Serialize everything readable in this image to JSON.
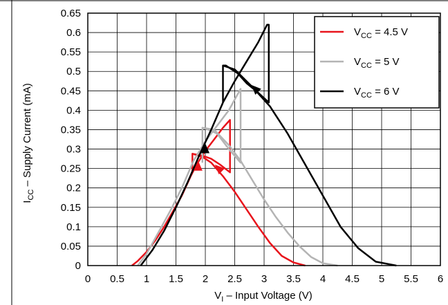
{
  "chart_data": {
    "type": "line",
    "title": "",
    "xlabel": {
      "main": "V",
      "sub": "I",
      "rest": " – Input Voltage (V)"
    },
    "ylabel": {
      "main": "I",
      "sub": "CC",
      "rest": " – Supply Current (mA)"
    },
    "xlim": [
      0,
      6
    ],
    "ylim": [
      0,
      0.65
    ],
    "xticks": [
      0,
      0.5,
      1,
      1.5,
      2,
      2.5,
      3,
      3.5,
      4,
      4.5,
      5,
      5.5,
      6
    ],
    "xtick_labels": [
      "0",
      "0.5",
      "1",
      "1.5",
      "2",
      "2.5",
      "3",
      "3.5",
      "4",
      "4.5",
      "5",
      "5.5",
      "6"
    ],
    "yticks": [
      0,
      0.05,
      0.1,
      0.15,
      0.2,
      0.25,
      0.3,
      0.35,
      0.4,
      0.45,
      0.5,
      0.55,
      0.6,
      0.65
    ],
    "ytick_labels": [
      "0",
      "0.05",
      "0.1",
      "0.15",
      "0.2",
      "0.25",
      "0.3",
      "0.35",
      "0.4",
      "0.45",
      "0.5",
      "0.55",
      "0.6",
      "0.65"
    ],
    "grid": true,
    "legend_position": "top-right",
    "series": [
      {
        "name": {
          "main": "V",
          "sub": "CC",
          "rest": " = 4.5 V"
        },
        "color": "#e8141c",
        "rising": [
          [
            0.75,
            0
          ],
          [
            0.85,
            0.012
          ],
          [
            1.0,
            0.035
          ],
          [
            1.15,
            0.065
          ],
          [
            1.3,
            0.1
          ],
          [
            1.45,
            0.14
          ],
          [
            1.6,
            0.18
          ],
          [
            1.75,
            0.23
          ],
          [
            1.85,
            0.26
          ],
          [
            2.0,
            0.295
          ],
          [
            2.15,
            0.325
          ],
          [
            2.3,
            0.355
          ],
          [
            2.42,
            0.375
          ],
          [
            2.42,
            0.24
          ],
          [
            2.25,
            0.26
          ],
          [
            2.1,
            0.275
          ],
          [
            1.95,
            0.283
          ],
          [
            1.78,
            0.288
          ],
          [
            1.78,
            0.24
          ]
        ],
        "falling": [
          [
            1.78,
            0.288
          ],
          [
            1.95,
            0.28
          ],
          [
            2.1,
            0.265
          ],
          [
            2.3,
            0.23
          ],
          [
            2.5,
            0.19
          ],
          [
            2.7,
            0.145
          ],
          [
            2.9,
            0.1
          ],
          [
            3.1,
            0.058
          ],
          [
            3.3,
            0.025
          ],
          [
            3.5,
            0.008
          ],
          [
            3.7,
            0
          ]
        ],
        "arrows": [
          [
            1.88,
            0.255,
            "up"
          ],
          [
            2.23,
            0.25,
            "left-up"
          ]
        ]
      },
      {
        "name": {
          "main": "V",
          "sub": "CC",
          "rest": " = 5 V"
        },
        "color": "#b4b4b4",
        "rising": [
          [
            0.85,
            0
          ],
          [
            1.0,
            0.03
          ],
          [
            1.2,
            0.085
          ],
          [
            1.4,
            0.14
          ],
          [
            1.6,
            0.2
          ],
          [
            1.8,
            0.27
          ],
          [
            2.0,
            0.32
          ],
          [
            2.2,
            0.36
          ],
          [
            2.4,
            0.4
          ],
          [
            2.6,
            0.455
          ],
          [
            2.6,
            0.265
          ],
          [
            2.4,
            0.3
          ],
          [
            2.2,
            0.34
          ],
          [
            2.05,
            0.35
          ],
          [
            1.95,
            0.355
          ],
          [
            1.95,
            0.265
          ]
        ],
        "falling": [
          [
            1.95,
            0.355
          ],
          [
            2.15,
            0.35
          ],
          [
            2.4,
            0.31
          ],
          [
            2.6,
            0.27
          ],
          [
            2.8,
            0.22
          ],
          [
            3.0,
            0.17
          ],
          [
            3.2,
            0.125
          ],
          [
            3.4,
            0.085
          ],
          [
            3.6,
            0.05
          ],
          [
            3.8,
            0.022
          ],
          [
            4.0,
            0.006
          ],
          [
            4.25,
            0
          ]
        ],
        "arrows": []
      },
      {
        "name": {
          "main": "V",
          "sub": "CC",
          "rest": " = 6 V"
        },
        "color": "#000000",
        "rising": [
          [
            0.9,
            0
          ],
          [
            1.1,
            0.04
          ],
          [
            1.3,
            0.09
          ],
          [
            1.5,
            0.15
          ],
          [
            1.7,
            0.215
          ],
          [
            1.9,
            0.285
          ],
          [
            2.1,
            0.35
          ],
          [
            2.3,
            0.42
          ],
          [
            2.5,
            0.475
          ],
          [
            2.7,
            0.525
          ],
          [
            2.9,
            0.575
          ],
          [
            3.05,
            0.62
          ],
          [
            3.08,
            0.62
          ],
          [
            3.08,
            0.42
          ],
          [
            2.9,
            0.445
          ],
          [
            2.7,
            0.47
          ],
          [
            2.55,
            0.495
          ],
          [
            2.35,
            0.515
          ],
          [
            2.3,
            0.515
          ],
          [
            2.3,
            0.42
          ]
        ],
        "falling": [
          [
            2.3,
            0.515
          ],
          [
            2.5,
            0.505
          ],
          [
            2.8,
            0.46
          ],
          [
            3.1,
            0.41
          ],
          [
            3.4,
            0.34
          ],
          [
            3.7,
            0.26
          ],
          [
            4.0,
            0.18
          ],
          [
            4.3,
            0.1
          ],
          [
            4.6,
            0.045
          ],
          [
            4.9,
            0.01
          ],
          [
            5.25,
            0
          ]
        ],
        "arrows": [
          [
            2.0,
            0.3,
            "up"
          ],
          [
            2.85,
            0.455,
            "left-up"
          ]
        ]
      }
    ]
  }
}
